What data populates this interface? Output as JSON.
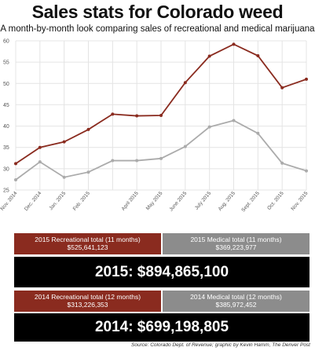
{
  "header": {
    "title": "Sales stats for Colorado weed",
    "subtitle": "A month-by-month look comparing sales of recreational and medical marijuana"
  },
  "chart_data": {
    "type": "line",
    "categories": [
      "Nov. 2014",
      "Dec. 2014",
      "Jan. 2015",
      "Feb. 2015",
      "March 2015",
      "April 2015",
      "May 2015",
      "June 2015",
      "July 2015",
      "Aug. 2015",
      "Sept. 2015",
      "Oct. 2015",
      "Nov. 2015"
    ],
    "x_tick_labels": [
      "Nov. 2014",
      "Dec. 2014",
      "Jan. 2015",
      "Feb. 2015",
      "",
      "April 2015",
      "May 2015",
      "June 2015",
      "July 2015",
      "Aug. 2015",
      "Sept. 2015",
      "Oct. 2015",
      "Nov. 2015"
    ],
    "series": [
      {
        "name": "Recreational",
        "color": "#8a2b1f",
        "values": [
          31.2,
          35.0,
          36.3,
          39.2,
          42.8,
          42.4,
          42.5,
          50.2,
          56.4,
          59.2,
          56.5,
          49.0,
          51.0
        ]
      },
      {
        "name": "Medical",
        "color": "#ababab",
        "values": [
          27.4,
          31.6,
          28.0,
          29.2,
          31.9,
          31.9,
          32.4,
          35.2,
          39.8,
          41.3,
          38.3,
          31.3,
          29.5
        ]
      }
    ],
    "ylim": [
      25,
      60
    ],
    "yticks": [
      25,
      30,
      35,
      40,
      45,
      50,
      55,
      60
    ],
    "grid": true,
    "title": "",
    "xlabel": "",
    "ylabel": ""
  },
  "stats": {
    "rec_2015": {
      "label": "2015 Recreational total (11 months)",
      "value": "$525,641,123"
    },
    "med_2015": {
      "label": "2015 Medical total (11 months)",
      "value": "$369,223,977"
    },
    "total_2015": "2015: $894,865,100",
    "rec_2014": {
      "label": "2014 Recreational total (12 months)",
      "value": "$313,226,353"
    },
    "med_2014": {
      "label": "2014 Medical total (12 months)",
      "value": "$385,972,452"
    },
    "total_2014": "2014: $699,198,805"
  },
  "source": "Source: Colorado Dept. of Revenue; graphic by Kevin Hamm, The Denver Post"
}
